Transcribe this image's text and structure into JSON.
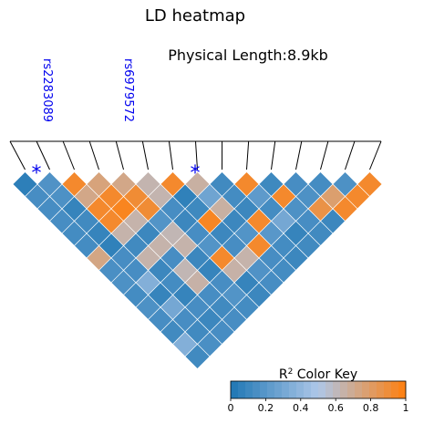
{
  "chart_data": {
    "type": "heatmap",
    "title": "LD heatmap",
    "subtitle": "Physical Length:8.9kb",
    "snp_count": 15,
    "snps_labeled": [
      {
        "name": "rs2283089",
        "index": 1
      },
      {
        "name": "rs6979572",
        "index": 6
      }
    ],
    "rows": [
      [
        0.05,
        0.17,
        0.93,
        0.75,
        0.72,
        0.63,
        0.93,
        0.66,
        0.12,
        0.93,
        0.11,
        0.14,
        0.13,
        0.16,
        0.93
      ],
      [
        0.14,
        0.16,
        0.72,
        0.93,
        0.91,
        0.63,
        0.06,
        0.28,
        0.13,
        0.22,
        0.93,
        0.16,
        0.78,
        0.93
      ],
      [
        0.14,
        0.08,
        0.93,
        0.96,
        0.91,
        0.14,
        0.11,
        0.66,
        0.1,
        0.13,
        0.16,
        0.87,
        0.93
      ],
      [
        0.14,
        0.12,
        0.93,
        0.64,
        0.18,
        0.1,
        0.95,
        0.1,
        0.93,
        0.3,
        0.14,
        0.1
      ],
      [
        0.13,
        0.08,
        0.64,
        0.1,
        0.62,
        0.14,
        0.1,
        0.18,
        0.2,
        0.08,
        0.12
      ],
      [
        0.13,
        0.06,
        0.12,
        0.64,
        0.64,
        0.18,
        0.14,
        0.93,
        0.13,
        0.12
      ],
      [
        0.73,
        0.14,
        0.64,
        0.14,
        0.1,
        0.93,
        0.64,
        0.14,
        0.1
      ],
      [
        0.15,
        0.14,
        0.1,
        0.62,
        0.08,
        0.65,
        0.17,
        0.13
      ],
      [
        0.16,
        0.35,
        0.13,
        0.65,
        0.14,
        0.08,
        0.14
      ],
      [
        0.13,
        0.08,
        0.08,
        0.14,
        0.18,
        0.1
      ],
      [
        0.16,
        0.3,
        0.14,
        0.12,
        0.13
      ],
      [
        0.14,
        0.14,
        0.1,
        0.14
      ],
      [
        0.12,
        0.12,
        0.14
      ],
      [
        0.35,
        0.15
      ],
      [
        0.12
      ]
    ],
    "color_key": {
      "title": "R² Color Key",
      "min": 0,
      "max": 1,
      "ticks": [
        "0",
        "0.2",
        "0.4",
        "0.6",
        "0.8",
        "1"
      ],
      "colors": {
        "low": "#1f77b4",
        "mid": "#aec7e8",
        "high": "#ff7f0e"
      }
    }
  }
}
